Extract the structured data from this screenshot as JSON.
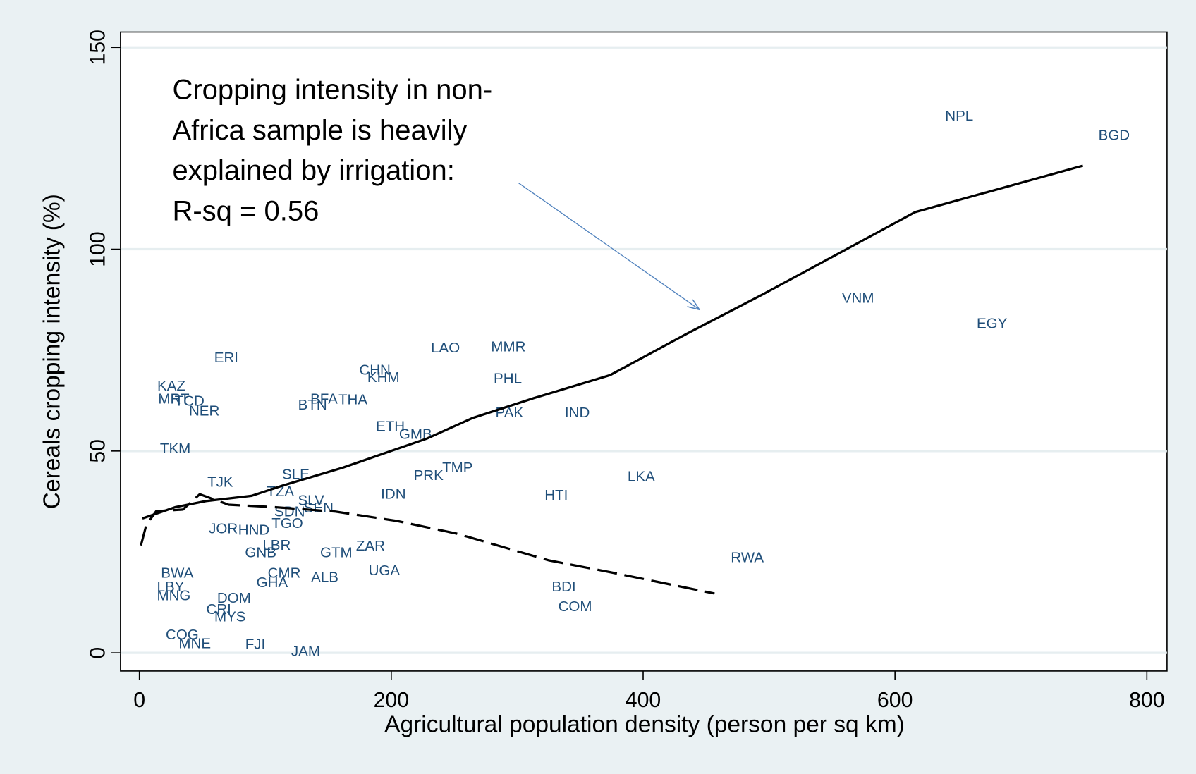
{
  "chart_data": {
    "type": "scatter",
    "x_label": "Agricultural population density (person per sq km)",
    "y_label": "Cereals cropping intensity (%)",
    "annotation": [
      "Cropping intensity in non-",
      "Africa sample is heavily",
      "explained by irrigation:",
      "R-sq = 0.56"
    ],
    "xlim": [
      -15,
      816
    ],
    "ylim": [
      -4.5,
      153.8
    ],
    "xticks": [
      0,
      200,
      400,
      600,
      800
    ],
    "yticks": [
      0,
      50,
      100,
      150
    ],
    "grid": true,
    "label_color": "#1f4e79",
    "points": {
      "labels": [
        "NPL",
        "BGD",
        "VNM",
        "EGY",
        "RWA",
        "LKA",
        "HTI",
        "BDI",
        "COM",
        "IND",
        "PAK",
        "PHL",
        "MMR",
        "LAO",
        "TMP",
        "PRK",
        "IDN",
        "UGA",
        "ZAR",
        "GTM",
        "ALB",
        "JAM",
        "FJI",
        "CHN",
        "KHM",
        "THA",
        "BFA",
        "BTN",
        "ETH",
        "GMB",
        "SLE",
        "TZA",
        "SLV",
        "SEN",
        "SDN",
        "TGO",
        "HND",
        "LBR",
        "GNB",
        "CMR",
        "GHA",
        "DOM",
        "CRI",
        "MYS",
        "ERI",
        "KAZ",
        "MRT",
        "TCD",
        "NER",
        "JOR",
        "TJK",
        "LBY",
        "MNG",
        "BWA",
        "MNE",
        "COG",
        "TKM"
      ],
      "x": [
        651,
        774,
        570.6,
        677,
        482.7,
        398.5,
        331,
        337,
        346,
        347.7,
        293.8,
        292.5,
        293,
        243,
        252.6,
        229.6,
        201.7,
        194.4,
        183.5,
        156.3,
        147.2,
        132,
        92,
        187,
        193.8,
        169.6,
        146.6,
        137.5,
        199.3,
        219.3,
        124.2,
        112,
        136.3,
        142.3,
        119.3,
        117.5,
        90.9,
        109,
        96.3,
        115,
        105.4,
        75.1,
        63,
        72,
        69,
        25.4,
        27.3,
        39.8,
        51.5,
        66.6,
        64.2,
        24.8,
        27.3,
        30,
        44,
        34,
        28.5
      ],
      "y": [
        132.8,
        128,
        87.7,
        81.4,
        23.4,
        43.5,
        38.9,
        16.2,
        11.3,
        59.3,
        59.3,
        67.8,
        75.6,
        75.4,
        45.7,
        43.8,
        39.1,
        20.2,
        26.3,
        24.6,
        18.5,
        0.2,
        1.9,
        69.9,
        68,
        62.5,
        62.7,
        61.2,
        55.9,
        54,
        44,
        39.7,
        37.6,
        35.7,
        34.8,
        31.9,
        30.2,
        26.5,
        24.6,
        19.6,
        17.2,
        13.4,
        10.6,
        8.7,
        72.9,
        65.9,
        62.7,
        62.2,
        59.7,
        30.6,
        42.1,
        16.2,
        14,
        19.6,
        2.1,
        4.3,
        50.4
      ]
    },
    "lines": [
      {
        "style": "solid",
        "color": "#000000",
        "x": [
          2.4,
          28.5,
          52.7,
          89,
          113.3,
          161.7,
          228.3,
          264.7,
          313.1,
          373.7,
          434.3,
          494.9,
          555.5,
          616,
          749.2
        ],
        "y": [
          33.3,
          36.1,
          37.6,
          38.9,
          41.4,
          45.9,
          53.1,
          58.2,
          63.1,
          68.8,
          79,
          88.8,
          99,
          109.2,
          120.7
        ]
      },
      {
        "style": "dashed",
        "color": "#000000",
        "x": [
          1.2,
          5.5,
          13.3,
          34.5,
          47.9,
          70.9,
          107.2,
          155.7,
          204.1,
          252.6,
          325.3,
          373.7,
          456.7
        ],
        "y": [
          26.6,
          31.7,
          35.1,
          35.5,
          39.3,
          36.7,
          36.1,
          35,
          32.7,
          29.5,
          22.9,
          20,
          14.7
        ]
      }
    ]
  }
}
